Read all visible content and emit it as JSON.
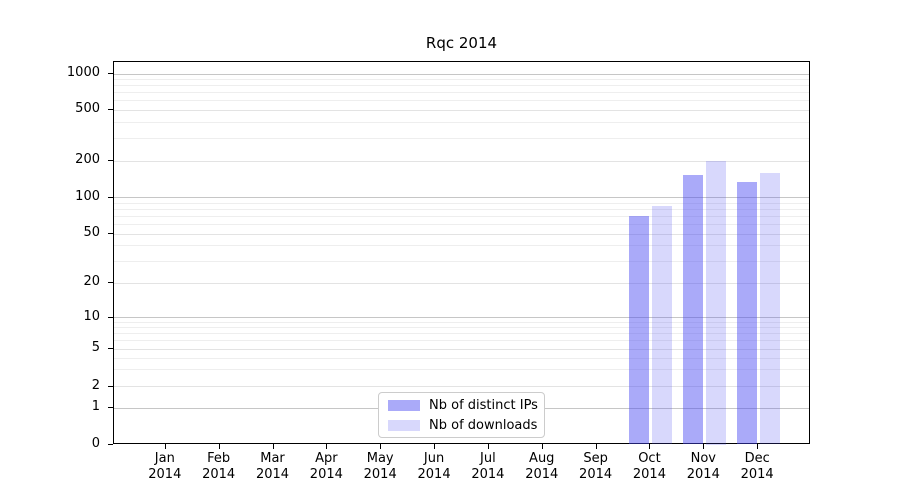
{
  "title": "Rqc 2014",
  "chart_data": {
    "type": "bar",
    "title": "Rqc 2014",
    "x_months": [
      "Jan",
      "Feb",
      "Mar",
      "Apr",
      "May",
      "Jun",
      "Jul",
      "Aug",
      "Sep",
      "Oct",
      "Nov",
      "Dec"
    ],
    "x_year": "2014",
    "series": [
      {
        "name": "Nb of distinct IPs",
        "key": "distinct-ips",
        "color_rgba": "rgba(70,70,242,0.46)",
        "color_hex_on_white": "#a9a9f8",
        "values": [
          0,
          0,
          0,
          0,
          0,
          0,
          0,
          0,
          0,
          70,
          155,
          135
        ]
      },
      {
        "name": "Nb of downloads",
        "key": "downloads",
        "color_rgba": "rgba(70,70,242,0.21)",
        "color_hex_on_white": "#d9d9f8",
        "values": [
          0,
          0,
          0,
          0,
          0,
          0,
          0,
          0,
          0,
          85,
          200,
          160
        ]
      }
    ],
    "y_scale": "symlog",
    "y_ticks": [
      0,
      1,
      2,
      5,
      10,
      20,
      50,
      100,
      200,
      500,
      1000
    ],
    "y_minor_ticks": [
      3,
      4,
      6,
      7,
      8,
      9,
      30,
      40,
      60,
      70,
      80,
      90,
      300,
      400,
      600,
      700,
      800,
      900
    ],
    "y_decade_ticks": [
      1,
      10,
      100,
      1000
    ],
    "ylim": [
      0,
      1200
    ],
    "grid": true,
    "grid_color_decade": "#c6c6c6",
    "grid_color_major": "#e3e3e3",
    "grid_color_minor": "#eeeeee",
    "legend_position": "lower-center",
    "axes_color": "#000000"
  }
}
